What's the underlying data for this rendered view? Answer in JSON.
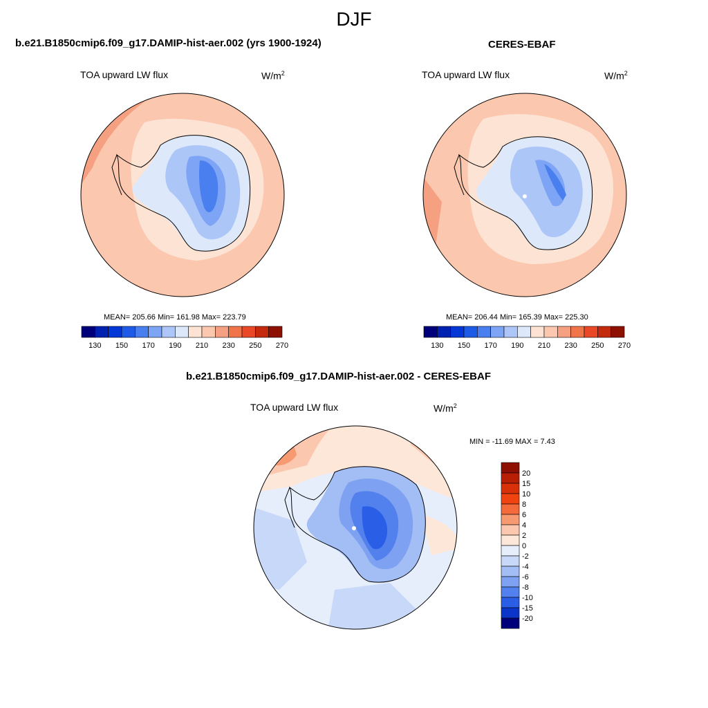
{
  "figure": {
    "season": "DJF"
  },
  "panels": [
    {
      "title": "b.e21.B1850cmip6.f09_g17.DAMIP-hist-aer.002 (yrs 1900-1924)",
      "variable": "TOA upward LW flux",
      "units": "W/m",
      "units_exp": "2",
      "stats": "MEAN= 205.66  Min= 161.98  Max= 223.79"
    },
    {
      "title": "CERES-EBAF",
      "variable": "TOA upward LW flux",
      "units": "W/m",
      "units_exp": "2",
      "stats": "MEAN= 206.44  Min= 165.39  Max= 225.30"
    },
    {
      "title": "b.e21.B1850cmip6.f09_g17.DAMIP-hist-aer.002 - CERES-EBAF",
      "variable": "TOA upward LW flux",
      "units": "W/m",
      "units_exp": "2",
      "stats": "MIN = -11.69 MAX =   7.43"
    }
  ],
  "chart_data": [
    {
      "type": "heatmap",
      "projection": "south-polar-stereographic",
      "title": "b.e21.B1850cmip6.f09_g17.DAMIP-hist-aer.002 (yrs 1900-1924)",
      "variable": "TOA upward LW flux",
      "units": "W/m2",
      "mean": 205.66,
      "min": 161.98,
      "max": 223.79,
      "colorbar_levels": [
        130,
        140,
        150,
        160,
        170,
        180,
        190,
        200,
        210,
        220,
        230,
        240,
        250,
        260,
        270
      ],
      "colorbar_tick_labels": [
        "130",
        "150",
        "170",
        "190",
        "210",
        "230",
        "250",
        "270"
      ],
      "colorbar_colors": [
        "#00007a",
        "#0022b0",
        "#0537d6",
        "#1e5ae6",
        "#4a7ff0",
        "#7ea4f5",
        "#acc6f8",
        "#dde9fa",
        "#fde3d3",
        "#fbc7ae",
        "#f5a080",
        "#f07449",
        "#e84825",
        "#c42a0d",
        "#8e1003"
      ],
      "colorbar_orientation": "horizontal"
    },
    {
      "type": "heatmap",
      "projection": "south-polar-stereographic",
      "title": "CERES-EBAF",
      "variable": "TOA upward LW flux",
      "units": "W/m2",
      "mean": 206.44,
      "min": 165.39,
      "max": 225.3,
      "colorbar_levels": [
        130,
        140,
        150,
        160,
        170,
        180,
        190,
        200,
        210,
        220,
        230,
        240,
        250,
        260,
        270
      ],
      "colorbar_tick_labels": [
        "130",
        "150",
        "170",
        "190",
        "210",
        "230",
        "250",
        "270"
      ],
      "colorbar_colors": [
        "#00007a",
        "#0022b0",
        "#0537d6",
        "#1e5ae6",
        "#4a7ff0",
        "#7ea4f5",
        "#acc6f8",
        "#dde9fa",
        "#fde3d3",
        "#fbc7ae",
        "#f5a080",
        "#f07449",
        "#e84825",
        "#c42a0d",
        "#8e1003"
      ],
      "colorbar_orientation": "horizontal"
    },
    {
      "type": "heatmap",
      "projection": "south-polar-stereographic",
      "title": "b.e21.B1850cmip6.f09_g17.DAMIP-hist-aer.002 - CERES-EBAF",
      "variable": "TOA upward LW flux",
      "units": "W/m2",
      "min": -11.69,
      "max": 7.43,
      "colorbar_levels": [
        -20,
        -15,
        -10,
        -8,
        -6,
        -4,
        -2,
        0,
        2,
        4,
        6,
        8,
        10,
        15,
        20
      ],
      "colorbar_tick_labels": [
        "20",
        "15",
        "10",
        "8",
        "6",
        "4",
        "2",
        "0",
        "-2",
        "-4",
        "-6",
        "-8",
        "-10",
        "-15",
        "-20"
      ],
      "colorbar_colors": [
        "#8e1003",
        "#b81f05",
        "#d83008",
        "#f04410",
        "#f56a3a",
        "#f79a72",
        "#fbc7ae",
        "#fde7d9",
        "#e6eefc",
        "#c7d8f8",
        "#a3bdf5",
        "#7ea1f1",
        "#5280ec",
        "#2a5ee6",
        "#0a35c8",
        "#00007a"
      ],
      "colorbar_orientation": "vertical"
    }
  ]
}
